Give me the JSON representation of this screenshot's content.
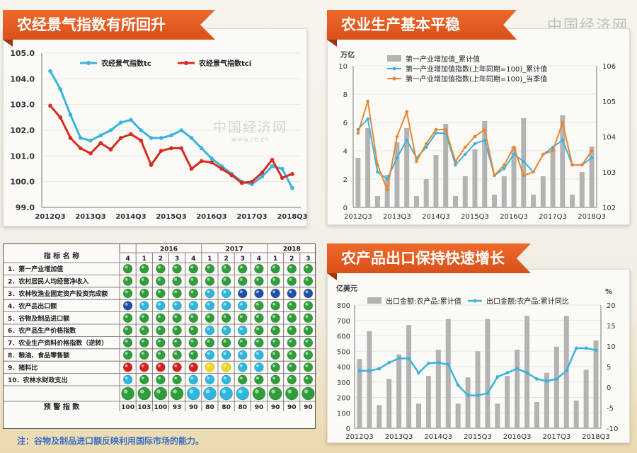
{
  "watermark": {
    "brand": "中国经济网",
    "url": "www.ce.cn"
  },
  "panel1": {
    "title": "农经景气指数有所回升",
    "chart_data": {
      "type": "line",
      "x_ticks": [
        "2012Q3",
        "2013Q3",
        "2014Q3",
        "2015Q3",
        "2016Q3",
        "2017Q3",
        "2018Q3"
      ],
      "x": [
        "2012Q3",
        "2012Q4",
        "2013Q1",
        "2013Q2",
        "2013Q3",
        "2013Q4",
        "2014Q1",
        "2014Q2",
        "2014Q3",
        "2014Q4",
        "2015Q1",
        "2015Q2",
        "2015Q3",
        "2015Q4",
        "2016Q1",
        "2016Q2",
        "2016Q3",
        "2016Q4",
        "2017Q1",
        "2017Q2",
        "2017Q3",
        "2017Q4",
        "2018Q1",
        "2018Q2",
        "2018Q3"
      ],
      "ylim": [
        99.0,
        105.0
      ],
      "yticks": [
        "99.0",
        "100.0",
        "101.0",
        "102.0",
        "103.0",
        "104.0",
        "105.0"
      ],
      "legend_placement": "top",
      "series": [
        {
          "name": "农经景气指数tc",
          "color": "#3ab4dc",
          "values": [
            104.3,
            103.6,
            102.6,
            101.7,
            101.6,
            101.8,
            102.0,
            102.3,
            102.4,
            102.0,
            101.7,
            101.7,
            101.8,
            102.0,
            101.7,
            101.3,
            100.9,
            100.6,
            100.3,
            100.0,
            99.9,
            100.2,
            100.6,
            100.5,
            99.75
          ]
        },
        {
          "name": "农经景气指数tci",
          "color": "#d82b20",
          "values": [
            102.95,
            102.5,
            101.7,
            101.3,
            101.1,
            101.5,
            101.25,
            101.7,
            101.85,
            101.6,
            100.65,
            101.2,
            101.3,
            101.3,
            100.5,
            100.8,
            100.75,
            100.5,
            100.25,
            99.95,
            100.0,
            100.35,
            100.85,
            100.15,
            100.3
          ]
        }
      ]
    }
  },
  "panel2": {
    "title": "农业生产基本平稳",
    "chart_data": {
      "type": "bar",
      "x_ticks": [
        "2012Q3",
        "2013Q3",
        "2014Q3",
        "2015Q3",
        "2016Q3",
        "2017Q3",
        "2018Q3"
      ],
      "x": [
        "2012Q3",
        "2012Q4",
        "2013Q1",
        "2013Q2",
        "2013Q3",
        "2013Q4",
        "2014Q1",
        "2014Q2",
        "2014Q3",
        "2014Q4",
        "2015Q1",
        "2015Q2",
        "2015Q3",
        "2015Q4",
        "2016Q1",
        "2016Q2",
        "2016Q3",
        "2016Q4",
        "2017Q1",
        "2017Q2",
        "2017Q3",
        "2017Q4",
        "2018Q1",
        "2018Q2",
        "2018Q3"
      ],
      "yunit": "万亿",
      "ylim": [
        0,
        10
      ],
      "y2lim": [
        102,
        106
      ],
      "yticks": [
        "0",
        "2",
        "4",
        "6",
        "8",
        "10"
      ],
      "y2ticks": [
        "102",
        "103",
        "104",
        "105",
        "106"
      ],
      "legend_placement": "top",
      "series": [
        {
          "name": "第一产业增加值_累计值",
          "kind": "bar",
          "axis": "left",
          "color": "#b3b3b3",
          "values": [
            3.5,
            5.6,
            0.8,
            2.3,
            4.6,
            5.6,
            0.8,
            2.0,
            3.7,
            5.9,
            0.8,
            2.2,
            4.1,
            6.1,
            0.9,
            2.2,
            4.3,
            6.3,
            0.9,
            2.2,
            4.2,
            6.5,
            0.9,
            2.5,
            4.3
          ]
        },
        {
          "name": "第一产业增加值指数(上年同期=100)_累计值",
          "kind": "line",
          "axis": "right",
          "color": "#3ab4dc",
          "values": [
            104.2,
            104.5,
            103.0,
            102.8,
            103.4,
            103.9,
            103.4,
            103.7,
            104.1,
            104.1,
            103.2,
            103.5,
            103.8,
            103.9,
            102.9,
            103.1,
            103.5,
            103.3,
            103.0,
            103.5,
            103.7,
            103.9,
            103.2,
            103.2,
            103.4
          ]
        },
        {
          "name": "第一产业增加值指数(上年同期=100)_当季值",
          "kind": "line",
          "axis": "right",
          "color": "#e8862e",
          "values": [
            104.1,
            105.0,
            103.2,
            102.5,
            104.0,
            104.7,
            103.3,
            103.8,
            104.2,
            104.2,
            103.3,
            103.7,
            104.0,
            104.2,
            102.9,
            103.2,
            103.7,
            102.9,
            103.0,
            103.5,
            103.6,
            104.4,
            103.2,
            103.2,
            103.6
          ]
        }
      ]
    }
  },
  "panel3": {
    "title": "农产品出口保持快速增长",
    "chart_data": {
      "type": "bar",
      "x_ticks": [
        "2012Q3",
        "2013Q3",
        "2014Q3",
        "2015Q3",
        "2016Q3",
        "2017Q3",
        "2018Q3"
      ],
      "x": [
        "2012Q3",
        "2012Q4",
        "2013Q1",
        "2013Q2",
        "2013Q3",
        "2013Q4",
        "2014Q1",
        "2014Q2",
        "2014Q3",
        "2014Q4",
        "2015Q1",
        "2015Q2",
        "2015Q3",
        "2015Q4",
        "2016Q1",
        "2016Q2",
        "2016Q3",
        "2016Q4",
        "2017Q1",
        "2017Q2",
        "2017Q3",
        "2017Q4",
        "2018Q1",
        "2018Q2",
        "2018Q3"
      ],
      "yunit": "亿美元",
      "y2unit": "%",
      "ylim": [
        0,
        800
      ],
      "y2lim": [
        -10,
        20
      ],
      "yticks": [
        "0",
        "100",
        "200",
        "300",
        "400",
        "500",
        "600",
        "700",
        "800"
      ],
      "y2ticks": [
        "-10",
        "-5",
        "0",
        "5",
        "10",
        "15",
        "20"
      ],
      "legend_placement": "top",
      "series": [
        {
          "name": "出口金额:农产品:累计值",
          "kind": "bar",
          "axis": "left",
          "color": "#b3b3b3",
          "values": [
            450,
            630,
            150,
            320,
            480,
            670,
            160,
            340,
            510,
            710,
            160,
            330,
            500,
            710,
            160,
            340,
            510,
            730,
            170,
            360,
            530,
            730,
            180,
            380,
            570
          ]
        },
        {
          "name": "出口金额:农产品:累计同比",
          "kind": "line",
          "axis": "right",
          "color": "#3ab4dc",
          "values": [
            4.0,
            4.0,
            4.5,
            6.0,
            7.0,
            7.0,
            3.5,
            5.8,
            6.0,
            5.5,
            0.5,
            -2.0,
            -2.0,
            -1.5,
            2.5,
            3.5,
            4.5,
            3.5,
            2.0,
            1.5,
            2.0,
            4.0,
            9.5,
            9.5,
            9.0
          ]
        }
      ]
    }
  },
  "table": {
    "header_label": "指 标 名 称",
    "years": [
      "2016",
      "2017",
      "2018"
    ],
    "quarters": [
      "4",
      "1",
      "2",
      "3",
      "4",
      "1",
      "2",
      "3",
      "4",
      "1",
      "2",
      "3"
    ],
    "rows": [
      "1．第一产业增加值",
      "2．农村居民人均经营净收入",
      "3．农林牧渔业固定资产投资完成额",
      "4．农产品出口额",
      "5．谷物及制品进口额",
      "6．农产品生产价格指数",
      "7．农业生产资料价格指数（逆转）",
      "8．粮油、食品零售额",
      "9．猪料比",
      "10．农林水财政支出"
    ],
    "lights": [
      [
        "g",
        "g",
        "g",
        "g",
        "g",
        "g",
        "g",
        "g",
        "g",
        "g",
        "g",
        "g"
      ],
      [
        "g",
        "g",
        "g",
        "g",
        "g",
        "g",
        "g",
        "g",
        "g",
        "g",
        "g",
        "g"
      ],
      [
        "g",
        "g",
        "g",
        "g",
        "g",
        "c",
        "c",
        "b",
        "b",
        "b",
        "b",
        "b"
      ],
      [
        "b",
        "c",
        "c",
        "c",
        "c",
        "c",
        "c",
        "c",
        "g",
        "g",
        "g",
        "g"
      ],
      [
        "g",
        "g",
        "g",
        "g",
        "g",
        "g",
        "g",
        "g",
        "g",
        "g",
        "g",
        "g"
      ],
      [
        "g",
        "g",
        "g",
        "g",
        "g",
        "c",
        "c",
        "c",
        "g",
        "g",
        "g",
        "g"
      ],
      [
        "g",
        "g",
        "g",
        "g",
        "g",
        "g",
        "g",
        "g",
        "g",
        "g",
        "g",
        "g"
      ],
      [
        "g",
        "g",
        "g",
        "g",
        "g",
        "c",
        "c",
        "c",
        "c",
        "g",
        "g",
        "g"
      ],
      [
        "r",
        "r",
        "r",
        "r",
        "r",
        "y",
        "y",
        "c",
        "c",
        "g",
        "g",
        "g"
      ],
      [
        "c",
        "g",
        "g",
        "g",
        "c",
        "c",
        "c",
        "g",
        "g",
        "g",
        "g",
        "g"
      ]
    ],
    "summary_label": "预  警  指  数",
    "summary_lights": [
      "g",
      "g",
      "g",
      "g",
      "c",
      "c",
      "c",
      "c",
      "g",
      "g",
      "g",
      "g"
    ],
    "summary_values": [
      "100",
      "103",
      "100",
      "93",
      "90",
      "80",
      "80",
      "80",
      "90",
      "90",
      "90",
      "90"
    ],
    "colors": {
      "g": "#2e9e3a",
      "c": "#2bb7e0",
      "b": "#1f4fa8",
      "r": "#d62020",
      "y": "#f2d81c"
    }
  },
  "note": "注：谷物及制品进口额反映利用国际市场的能力。"
}
